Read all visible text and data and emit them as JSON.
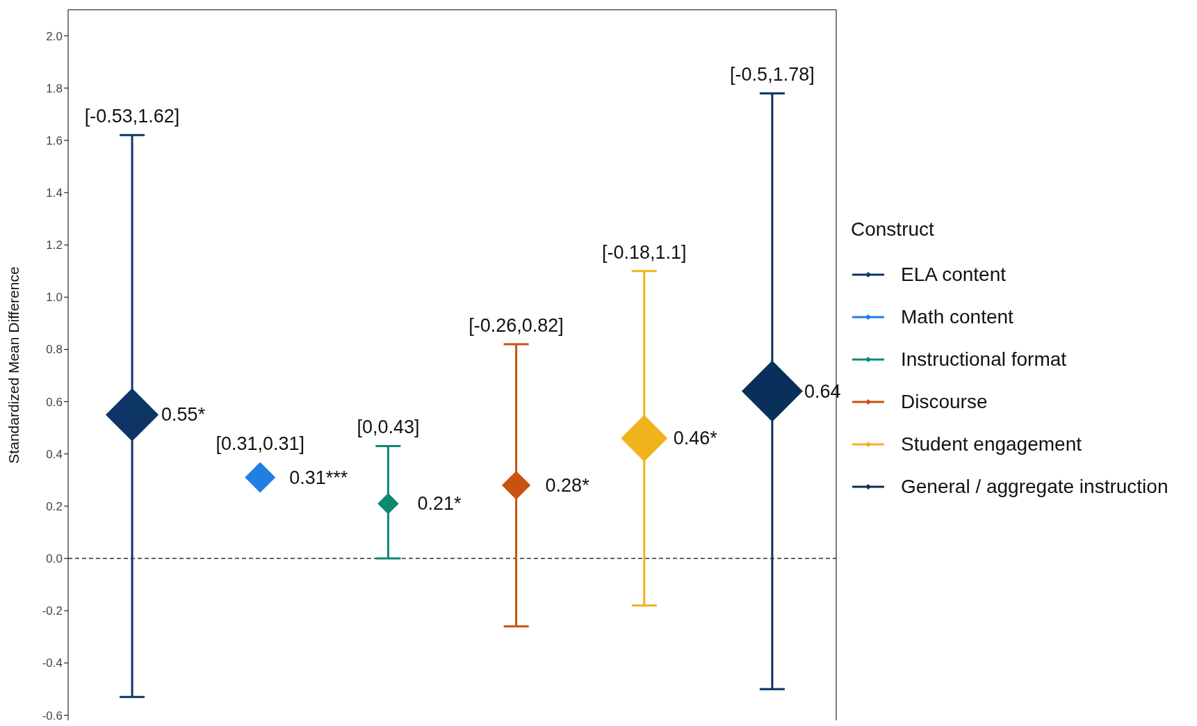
{
  "chart_data": {
    "type": "bubble",
    "ylabel": "Standardized Mean Difference",
    "legend_title": "Construct",
    "legend": "right",
    "marker": "diamond",
    "categories": [
      null,
      null,
      null,
      null,
      null,
      null
    ],
    "ylim": [
      -0.62,
      2.1
    ],
    "yticks": [
      -0.6,
      -0.4,
      -0.2,
      {
        "value": 0,
        "label": "0.0"
      },
      0.2,
      0.4,
      0.6,
      0.8,
      {
        "value": 1,
        "label": "1.0"
      },
      1.2,
      1.4,
      1.6,
      1.8,
      {
        "value": 2,
        "label": "2.0"
      }
    ],
    "ref_lines": [
      {
        "axis": "y",
        "value": 0,
        "line_style": "dashed",
        "color": "#333333"
      }
    ],
    "series": [
      {
        "name": "ELA content",
        "color": "#0d3666",
        "values": [
          0.55,
          null,
          null,
          null,
          null,
          null
        ],
        "errors": [
          [
            -0.53,
            1.62
          ],
          null,
          null,
          null,
          null,
          null
        ],
        "sizes": [
          0.75,
          null,
          null,
          null,
          null,
          null
        ],
        "value_labels": [
          "0.55*",
          null,
          null,
          null,
          null,
          null
        ]
      },
      {
        "name": "Math content",
        "color": "#1f7fe3",
        "values": [
          null,
          0.31,
          null,
          null,
          null,
          null
        ],
        "errors": [
          null,
          [
            0.31,
            0.31
          ],
          null,
          null,
          null,
          null
        ],
        "sizes": [
          null,
          0.25,
          null,
          null,
          null,
          null
        ],
        "value_labels": [
          null,
          "0.31***",
          null,
          null,
          null,
          null
        ]
      },
      {
        "name": "Instructional format",
        "color": "#0b8a72",
        "values": [
          null,
          null,
          0.21,
          null,
          null,
          null
        ],
        "errors": [
          null,
          null,
          [
            0,
            0.43
          ],
          null,
          null,
          null
        ],
        "sizes": [
          null,
          null,
          0.12,
          null,
          null,
          null
        ],
        "value_labels": [
          null,
          null,
          "0.21*",
          null,
          null,
          null
        ]
      },
      {
        "name": "Discourse",
        "color": "#c9520f",
        "values": [
          null,
          null,
          null,
          0.28,
          null,
          null
        ],
        "errors": [
          null,
          null,
          null,
          [
            -0.26,
            0.82
          ],
          null,
          null
        ],
        "sizes": [
          null,
          null,
          null,
          0.22,
          null,
          null
        ],
        "value_labels": [
          null,
          null,
          null,
          "0.28*",
          null,
          null
        ]
      },
      {
        "name": "Student engagement",
        "color": "#f0b31c",
        "values": [
          null,
          null,
          null,
          null,
          0.46,
          null
        ],
        "errors": [
          null,
          null,
          null,
          null,
          [
            -0.18,
            1.1
          ],
          null
        ],
        "sizes": [
          null,
          null,
          null,
          null,
          0.58,
          null
        ],
        "value_labels": [
          null,
          null,
          null,
          null,
          "0.46*",
          null
        ]
      },
      {
        "name": "General / aggregate instruction",
        "color": "#08305a",
        "values": [
          null,
          null,
          null,
          null,
          null,
          0.64
        ],
        "errors": [
          null,
          null,
          null,
          null,
          null,
          [
            -0.5,
            1.78
          ]
        ],
        "sizes": [
          null,
          null,
          null,
          null,
          null,
          1
        ],
        "value_labels": [
          null,
          null,
          null,
          null,
          null,
          "0.64"
        ]
      }
    ],
    "annotations": [
      "[-0.53,1.62]",
      "[0.31,0.31]",
      "[0,0.43]",
      "[-0.26,0.82]",
      "[-0.18,1.1]",
      "[-0.5,1.78]"
    ]
  }
}
